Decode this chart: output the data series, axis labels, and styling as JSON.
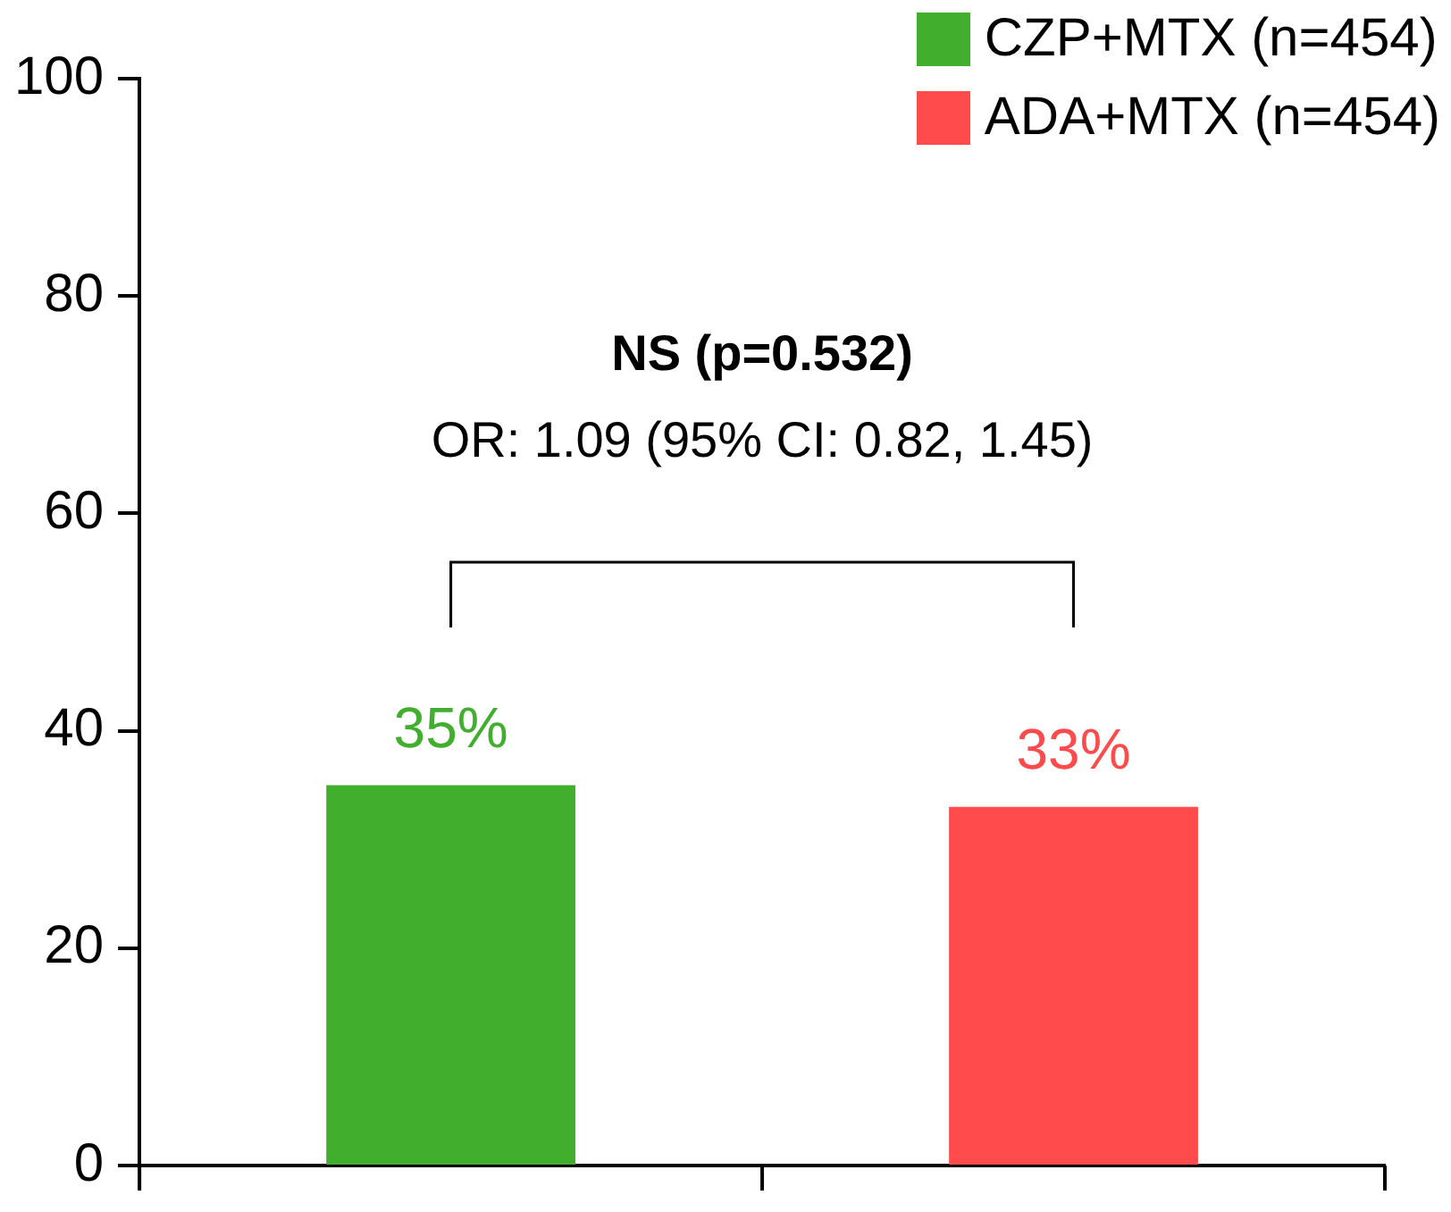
{
  "chart_data": {
    "type": "bar",
    "categories": [
      null,
      null
    ],
    "series": [
      {
        "name": "CZP+MTX (n=454)",
        "color": "#41ae2e",
        "values": [
          35,
          null
        ],
        "value_labels": [
          "35%",
          null
        ]
      },
      {
        "name": "ADA+MTX (n=454)",
        "color": "#ff4b4b",
        "values": [
          null,
          33
        ],
        "value_labels": [
          null,
          "33%"
        ]
      }
    ],
    "ylim": [
      0,
      100
    ],
    "yticks": [
      0,
      20,
      40,
      60,
      80,
      100
    ],
    "grid": false,
    "legend": "top right",
    "annotations": [
      "NS (p=0.532)",
      "OR: 1.09 (95% CI: 0.82, 1.45)"
    ]
  }
}
